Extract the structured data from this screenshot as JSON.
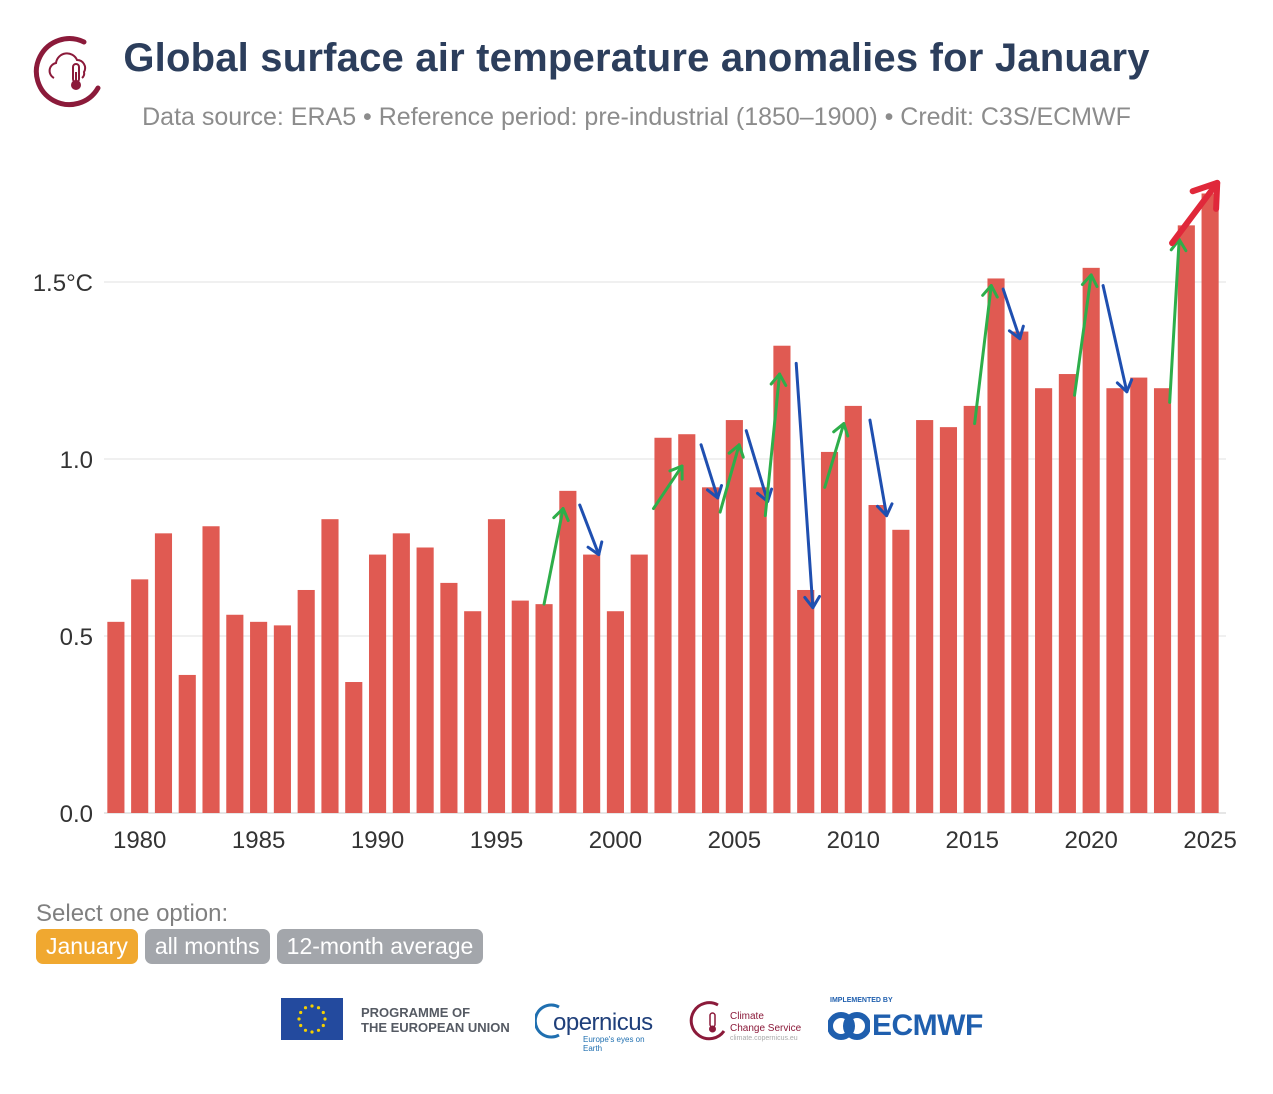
{
  "header": {
    "title": "Global surface air temperature anomalies for January",
    "subtitle": "Data source: ERA5 • Reference period: pre-industrial (1850–1900) • Credit: C3S/ECMWF",
    "logo_icon": "cloud-thermometer-icon"
  },
  "chart_data": {
    "type": "bar",
    "title": "Global surface air temperature anomalies for January",
    "xlabel": "",
    "ylabel": "",
    "ylim": [
      0,
      1.75
    ],
    "yticks": [
      0.0,
      0.5,
      1.0,
      1.5
    ],
    "ytick_labels": [
      "0.0",
      "0.5",
      "1.0",
      "1.5°C"
    ],
    "xtick_labels": [
      "1980",
      "1985",
      "1990",
      "1995",
      "2000",
      "2005",
      "2010",
      "2015",
      "2020",
      "2025"
    ],
    "grid": true,
    "bar_color": "#e05a52",
    "categories": [
      1979,
      1980,
      1981,
      1982,
      1983,
      1984,
      1985,
      1986,
      1987,
      1988,
      1989,
      1990,
      1991,
      1992,
      1993,
      1994,
      1995,
      1996,
      1997,
      1998,
      1999,
      2000,
      2001,
      2002,
      2003,
      2004,
      2005,
      2006,
      2007,
      2008,
      2009,
      2010,
      2011,
      2012,
      2013,
      2014,
      2015,
      2016,
      2017,
      2018,
      2019,
      2020,
      2021,
      2022,
      2023,
      2024,
      2025
    ],
    "values": [
      0.54,
      0.66,
      0.79,
      0.39,
      0.81,
      0.56,
      0.54,
      0.53,
      0.63,
      0.83,
      0.37,
      0.73,
      0.79,
      0.75,
      0.65,
      0.57,
      0.83,
      0.6,
      0.59,
      0.91,
      0.73,
      0.57,
      0.73,
      1.06,
      1.07,
      0.92,
      1.11,
      0.92,
      1.32,
      0.63,
      1.02,
      1.15,
      0.87,
      0.8,
      1.11,
      1.09,
      1.15,
      1.51,
      1.36,
      1.2,
      1.24,
      1.54,
      1.2,
      1.23,
      1.2,
      1.66,
      1.75
    ],
    "annotations": [
      {
        "type": "arrow",
        "color": "#2eae4a",
        "from": [
          1997,
          0.59
        ],
        "to": [
          1997.8,
          0.86
        ]
      },
      {
        "type": "arrow",
        "color": "#1f4fb0",
        "from": [
          1998.5,
          0.87
        ],
        "to": [
          1999.3,
          0.73
        ]
      },
      {
        "type": "arrow",
        "color": "#2eae4a",
        "from": [
          2001.6,
          0.86
        ],
        "to": [
          2002.8,
          0.98
        ]
      },
      {
        "type": "arrow",
        "color": "#1f4fb0",
        "from": [
          2003.6,
          1.04
        ],
        "to": [
          2004.3,
          0.89
        ]
      },
      {
        "type": "arrow",
        "color": "#2eae4a",
        "from": [
          2004.4,
          0.85
        ],
        "to": [
          2005.2,
          1.04
        ]
      },
      {
        "type": "arrow",
        "color": "#1f4fb0",
        "from": [
          2005.5,
          1.08
        ],
        "to": [
          2006.4,
          0.88
        ]
      },
      {
        "type": "arrow",
        "color": "#2eae4a",
        "from": [
          2006.3,
          0.84
        ],
        "to": [
          2006.9,
          1.24
        ]
      },
      {
        "type": "arrow",
        "color": "#1f4fb0",
        "from": [
          2007.6,
          1.27
        ],
        "to": [
          2008.3,
          0.58
        ]
      },
      {
        "type": "arrow",
        "color": "#2eae4a",
        "from": [
          2008.8,
          0.92
        ],
        "to": [
          2009.6,
          1.1
        ]
      },
      {
        "type": "arrow",
        "color": "#1f4fb0",
        "from": [
          2010.7,
          1.11
        ],
        "to": [
          2011.4,
          0.84
        ]
      },
      {
        "type": "arrow",
        "color": "#2eae4a",
        "from": [
          2015.1,
          1.1
        ],
        "to": [
          2015.8,
          1.49
        ]
      },
      {
        "type": "arrow",
        "color": "#1f4fb0",
        "from": [
          2016.3,
          1.48
        ],
        "to": [
          2017,
          1.34
        ]
      },
      {
        "type": "arrow",
        "color": "#2eae4a",
        "from": [
          2019.3,
          1.18
        ],
        "to": [
          2020,
          1.52
        ]
      },
      {
        "type": "arrow",
        "color": "#1f4fb0",
        "from": [
          2020.5,
          1.49
        ],
        "to": [
          2021.5,
          1.19
        ]
      },
      {
        "type": "arrow",
        "color": "#2eae4a",
        "from": [
          2023.3,
          1.16
        ],
        "to": [
          2023.7,
          1.62
        ]
      },
      {
        "type": "arrow",
        "color": "#e0283a",
        "from": [
          2023.4,
          1.61
        ],
        "to": [
          2025.3,
          1.78
        ]
      }
    ]
  },
  "selector": {
    "label": "Select one option:",
    "options": [
      {
        "label": "January",
        "active": true
      },
      {
        "label": "all months",
        "active": false
      },
      {
        "label": "12-month average",
        "active": false
      }
    ]
  },
  "footer": {
    "eu_line1": "PROGRAMME OF",
    "eu_line2": "THE EUROPEAN UNION",
    "copernicus": "opernicus",
    "copernicus_tagline": "Europe's eyes on Earth",
    "c3s_line1": "Climate",
    "c3s_line2": "Change Service",
    "c3s_url": "climate.copernicus.eu",
    "ecmwf_implemented": "IMPLEMENTED BY",
    "ecmwf": "ECMWF"
  }
}
